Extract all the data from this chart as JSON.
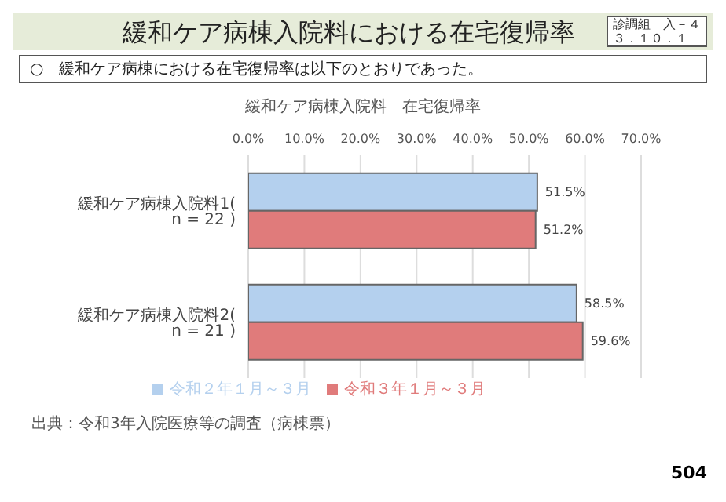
{
  "chart_data": {
    "type": "bar",
    "orientation": "horizontal",
    "title": "緩和ケア病棟入院料における在宅復帰率",
    "subtitle": "緩和ケア病棟入院料　在宅復帰率",
    "annotations": [
      "診調組　入－４",
      "３．１０．１",
      "○　緩和ケア病棟における在宅復帰率は以下のとおりであった。",
      "出典：令和3年入院医療等の調査（病棟票）",
      "504"
    ],
    "categories": [
      "緩和ケア病棟入院料1( n = 22 )",
      "緩和ケア病棟入院料2( n = 21 )"
    ],
    "series": [
      {
        "name": "令和２年１月～３月",
        "color": "#b4d0ee",
        "values": [
          51.5,
          58.5
        ],
        "value_labels": [
          "51.5%",
          "58.5%"
        ]
      },
      {
        "name": "令和３年１月～３月",
        "color": "#e07b7b",
        "values": [
          51.2,
          59.6
        ],
        "value_labels": [
          "51.2%",
          "59.6%"
        ]
      }
    ],
    "xlim": [
      0,
      70
    ],
    "xticks": [
      {
        "value": 0,
        "label": "0.0%"
      },
      {
        "value": 10,
        "label": "10.0%"
      },
      {
        "value": 20,
        "label": "20.0%"
      },
      {
        "value": 30,
        "label": "30.0%"
      },
      {
        "value": 40,
        "label": "40.0%"
      },
      {
        "value": 50,
        "label": "50.0%"
      },
      {
        "value": 60,
        "label": "60.0%"
      },
      {
        "value": 70,
        "label": "70.0%"
      }
    ],
    "grid": "x",
    "legend": "bottom"
  }
}
